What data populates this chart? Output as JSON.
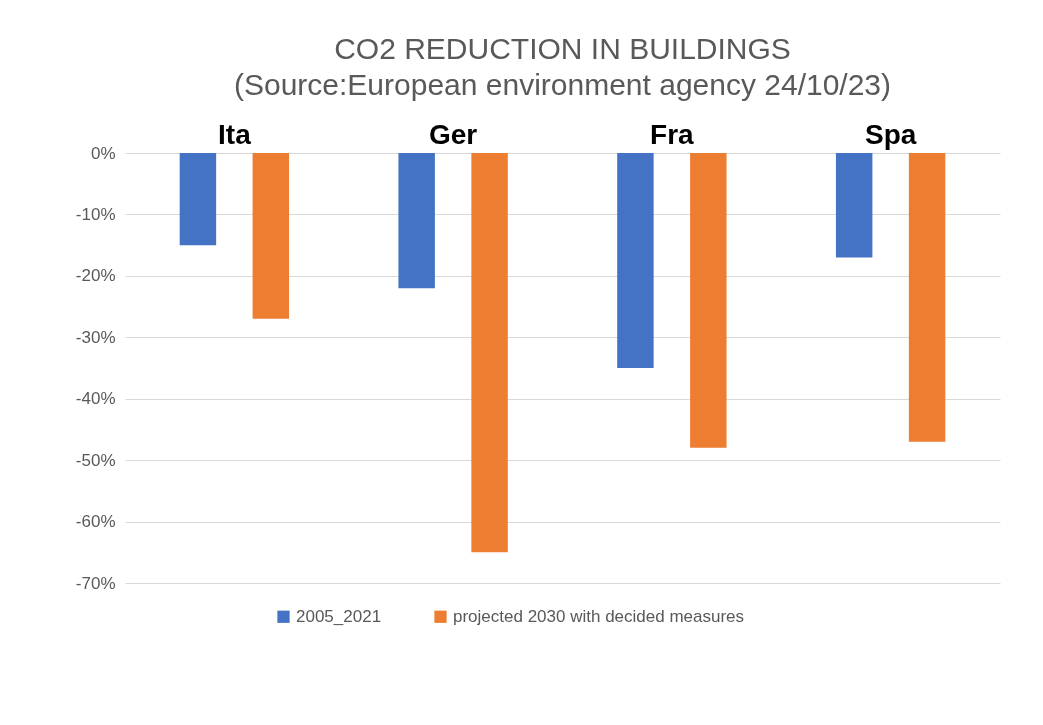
{
  "chart_data": {
    "type": "bar",
    "title": "CO2 REDUCTION IN BUILDINGS",
    "subtitle": "(Source:European environment agency 24/10/23)",
    "categories": [
      "Ita",
      "Ger",
      "Fra",
      "Spa"
    ],
    "series": [
      {
        "name": "2005_2021",
        "color": "#4472c4",
        "values": [
          -15,
          -22,
          -35,
          -17
        ]
      },
      {
        "name": "projected 2030 with decided measures",
        "color": "#ed7d31",
        "values": [
          -27,
          -65,
          -48,
          -47
        ]
      }
    ],
    "ylim": [
      -70,
      0
    ],
    "yticks": [
      {
        "value": 0,
        "label": "0%"
      },
      {
        "value": -10,
        "label": "-10%"
      },
      {
        "value": -20,
        "label": "-20%"
      },
      {
        "value": -30,
        "label": "-30%"
      },
      {
        "value": -40,
        "label": "-40%"
      },
      {
        "value": -50,
        "label": "-50%"
      },
      {
        "value": -60,
        "label": "-60%"
      },
      {
        "value": -70,
        "label": "-70%"
      }
    ],
    "grid": "y",
    "legend": "bottom"
  }
}
